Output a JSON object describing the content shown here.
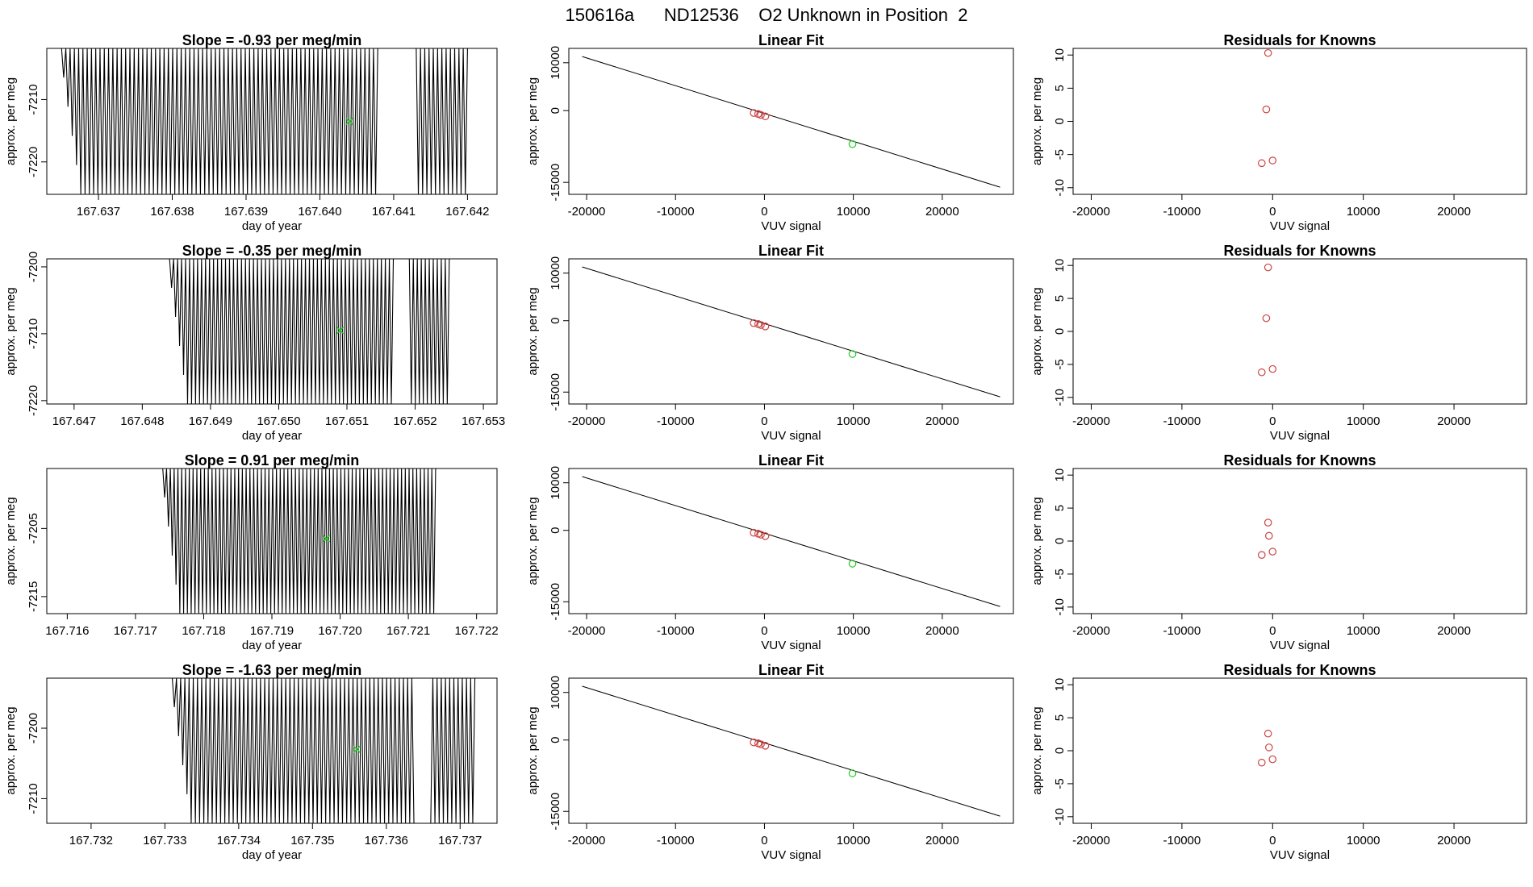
{
  "figure_title": "150616a      ND12536    O2 Unknown in Position  2",
  "chart_data": [
    {
      "row": 1,
      "panels": [
        {
          "type": "line",
          "title": "Slope =  -0.93  per meg/min",
          "xlabel": "day of year",
          "ylabel": "approx. per meg",
          "xlim": [
            167.6363,
            167.6424
          ],
          "ylim": [
            -7225.2,
            -7201.8
          ],
          "xticks": [
            167.637,
            167.638,
            167.639,
            167.64,
            167.641,
            167.642
          ],
          "xtick_labels": [
            "167.637",
            "167.638",
            "167.639",
            "167.640",
            "167.641",
            "167.642"
          ],
          "yticks": [
            -7210,
            -7220
          ],
          "ytick_labels": [
            "-7210",
            "-7220"
          ],
          "trace": {
            "x_start": 167.6365,
            "x_end": 167.642,
            "cycles": 95,
            "y_low": -7225.2,
            "y_high": -7201.8,
            "gaps": [
              [
                167.6408,
                167.6413
              ]
            ]
          },
          "marker": {
            "x": 167.6404,
            "y": -7213.5,
            "color": "#22cc22"
          }
        },
        {
          "type": "scatter",
          "title": "Linear Fit",
          "xlabel": "VUV signal",
          "ylabel": "approx. per meg",
          "xlim": [
            -22000,
            28000
          ],
          "ylim": [
            -17500,
            13000
          ],
          "xticks": [
            -20000,
            -10000,
            0,
            10000,
            20000
          ],
          "xtick_labels": [
            "-20000",
            "-10000",
            "0",
            "10000",
            "20000"
          ],
          "yticks": [
            10000,
            0,
            -15000
          ],
          "ytick_labels": [
            "10000",
            "0",
            "-15000"
          ],
          "fit_line": {
            "x": [
              -20500,
              26500
            ],
            "y": [
              11300,
              -16000
            ]
          },
          "points_known": {
            "x": [
              -1200,
              -700,
              -400,
              100
            ],
            "y": [
              -500,
              -700,
              -900,
              -1200
            ],
            "color": "#cc4444"
          },
          "points_unknown": {
            "x": [
              9900
            ],
            "y": [
              -7000
            ],
            "color": "#22cc22"
          }
        },
        {
          "type": "scatter",
          "title": "Residuals for Knowns",
          "xlabel": "VUV signal",
          "ylabel": "approx. per meg",
          "xlim": [
            -22000,
            28000
          ],
          "ylim": [
            -11,
            11
          ],
          "xticks": [
            -20000,
            -10000,
            0,
            10000,
            20000
          ],
          "xtick_labels": [
            "-20000",
            "-10000",
            "0",
            "10000",
            "20000"
          ],
          "yticks": [
            10,
            5,
            0,
            -5,
            -10
          ],
          "ytick_labels": [
            "10",
            "5",
            "0",
            "-5",
            "-10"
          ],
          "points": {
            "x": [
              -500,
              -700,
              -1200,
              0
            ],
            "y": [
              10.3,
              1.8,
              -6.3,
              -5.9
            ],
            "color": "#cc4444"
          }
        }
      ]
    },
    {
      "row": 2,
      "panels": [
        {
          "type": "line",
          "title": "Slope =  -0.35  per meg/min",
          "xlabel": "day of year",
          "ylabel": "approx. per meg",
          "xlim": [
            167.6466,
            167.6532
          ],
          "ylim": [
            -7220.5,
            -7198.8
          ],
          "xticks": [
            167.647,
            167.648,
            167.649,
            167.65,
            167.651,
            167.652,
            167.653
          ],
          "xtick_labels": [
            "167.647",
            "167.648",
            "167.649",
            "167.650",
            "167.651",
            "167.652",
            "167.653"
          ],
          "yticks": [
            -7200,
            -7210,
            -7220
          ],
          "ytick_labels": [
            "-7200",
            "-7210",
            "-7220"
          ],
          "trace": {
            "x_start": 167.6484,
            "x_end": 167.6525,
            "cycles": 70,
            "y_low": -7220.5,
            "y_high": -7198.8,
            "gaps": [
              [
                167.6517,
                167.6519
              ]
            ]
          },
          "marker": {
            "x": 167.6509,
            "y": -7209.5,
            "color": "#22cc22"
          }
        },
        {
          "type": "scatter",
          "title": "Linear Fit",
          "xlabel": "VUV signal",
          "ylabel": "approx. per meg",
          "xlim": [
            -22000,
            28000
          ],
          "ylim": [
            -17500,
            13000
          ],
          "xticks": [
            -20000,
            -10000,
            0,
            10000,
            20000
          ],
          "xtick_labels": [
            "-20000",
            "-10000",
            "0",
            "10000",
            "20000"
          ],
          "yticks": [
            10000,
            0,
            -15000
          ],
          "ytick_labels": [
            "10000",
            "0",
            "-15000"
          ],
          "fit_line": {
            "x": [
              -20500,
              26500
            ],
            "y": [
              11300,
              -16000
            ]
          },
          "points_known": {
            "x": [
              -1200,
              -700,
              -400,
              100
            ],
            "y": [
              -500,
              -700,
              -900,
              -1200
            ],
            "color": "#cc4444"
          },
          "points_unknown": {
            "x": [
              9900
            ],
            "y": [
              -7000
            ],
            "color": "#22cc22"
          }
        },
        {
          "type": "scatter",
          "title": "Residuals for Knowns",
          "xlabel": "VUV signal",
          "ylabel": "approx. per meg",
          "xlim": [
            -22000,
            28000
          ],
          "ylim": [
            -11,
            11
          ],
          "xticks": [
            -20000,
            -10000,
            0,
            10000,
            20000
          ],
          "xtick_labels": [
            "-20000",
            "-10000",
            "0",
            "10000",
            "20000"
          ],
          "yticks": [
            10,
            5,
            0,
            -5,
            -10
          ],
          "ytick_labels": [
            "10",
            "5",
            "0",
            "-5",
            "-10"
          ],
          "points": {
            "x": [
              -500,
              -700,
              -1200,
              0
            ],
            "y": [
              9.7,
              2.0,
              -6.2,
              -5.7
            ],
            "color": "#cc4444"
          }
        }
      ]
    },
    {
      "row": 3,
      "panels": [
        {
          "type": "line",
          "title": "Slope =  0.91  per meg/min",
          "xlabel": "day of year",
          "ylabel": "approx. per meg",
          "xlim": [
            167.7157,
            167.7223
          ],
          "ylim": [
            -7217.5,
            -7196.2
          ],
          "xticks": [
            167.716,
            167.717,
            167.718,
            167.719,
            167.72,
            167.721,
            167.722
          ],
          "xtick_labels": [
            "167.716",
            "167.717",
            "167.718",
            "167.719",
            "167.720",
            "167.721",
            "167.722"
          ],
          "yticks": [
            -7205,
            -7215
          ],
          "ytick_labels": [
            "-7205",
            "-7215"
          ],
          "trace": {
            "x_start": 167.7174,
            "x_end": 167.7214,
            "cycles": 72,
            "y_low": -7217.5,
            "y_high": -7196.2,
            "gaps": []
          },
          "marker": {
            "x": 167.7198,
            "y": -7206.5,
            "color": "#22cc22"
          }
        },
        {
          "type": "scatter",
          "title": "Linear Fit",
          "xlabel": "VUV signal",
          "ylabel": "approx. per meg",
          "xlim": [
            -22000,
            28000
          ],
          "ylim": [
            -17500,
            13000
          ],
          "xticks": [
            -20000,
            -10000,
            0,
            10000,
            20000
          ],
          "xtick_labels": [
            "-20000",
            "-10000",
            "0",
            "10000",
            "20000"
          ],
          "yticks": [
            10000,
            0,
            -15000
          ],
          "ytick_labels": [
            "10000",
            "0",
            "-15000"
          ],
          "fit_line": {
            "x": [
              -20500,
              26500
            ],
            "y": [
              11300,
              -16000
            ]
          },
          "points_known": {
            "x": [
              -1200,
              -700,
              -400,
              100
            ],
            "y": [
              -500,
              -700,
              -900,
              -1200
            ],
            "color": "#cc4444"
          },
          "points_unknown": {
            "x": [
              9900
            ],
            "y": [
              -7000
            ],
            "color": "#22cc22"
          }
        },
        {
          "type": "scatter",
          "title": "Residuals for Knowns",
          "xlabel": "VUV signal",
          "ylabel": "approx. per meg",
          "xlim": [
            -22000,
            28000
          ],
          "ylim": [
            -11,
            11
          ],
          "xticks": [
            -20000,
            -10000,
            0,
            10000,
            20000
          ],
          "xtick_labels": [
            "-20000",
            "-10000",
            "0",
            "10000",
            "20000"
          ],
          "yticks": [
            10,
            5,
            0,
            -5,
            -10
          ],
          "ytick_labels": [
            "10",
            "5",
            "0",
            "-5",
            "-10"
          ],
          "points": {
            "x": [
              -500,
              -400,
              -1200,
              0
            ],
            "y": [
              2.8,
              0.8,
              -2.1,
              -1.6
            ],
            "color": "#cc4444"
          }
        }
      ]
    },
    {
      "row": 4,
      "panels": [
        {
          "type": "line",
          "title": "Slope =  -1.63  per meg/min",
          "xlabel": "day of year",
          "ylabel": "approx. per meg",
          "xlim": [
            167.7314,
            167.7375
          ],
          "ylim": [
            -7213.5,
            -7192.9
          ],
          "xticks": [
            167.732,
            167.733,
            167.734,
            167.735,
            167.736,
            167.737
          ],
          "xtick_labels": [
            "167.732",
            "167.733",
            "167.734",
            "167.735",
            "167.736",
            "167.737"
          ],
          "yticks": [
            -7200,
            -7210
          ],
          "ytick_labels": [
            "-7200",
            "-7210"
          ],
          "trace": {
            "x_start": 167.7331,
            "x_end": 167.7372,
            "cycles": 72,
            "y_low": -7213.5,
            "y_high": -7192.9,
            "gaps": [
              [
                167.7364,
                167.7366
              ]
            ]
          },
          "marker": {
            "x": 167.7356,
            "y": -7203.0,
            "color": "#22cc22"
          }
        },
        {
          "type": "scatter",
          "title": "Linear Fit",
          "xlabel": "VUV signal",
          "ylabel": "approx. per meg",
          "xlim": [
            -22000,
            28000
          ],
          "ylim": [
            -17500,
            13000
          ],
          "xticks": [
            -20000,
            -10000,
            0,
            10000,
            20000
          ],
          "xtick_labels": [
            "-20000",
            "-10000",
            "0",
            "10000",
            "20000"
          ],
          "yticks": [
            10000,
            0,
            -15000
          ],
          "ytick_labels": [
            "10000",
            "0",
            "-15000"
          ],
          "fit_line": {
            "x": [
              -20500,
              26500
            ],
            "y": [
              11300,
              -16000
            ]
          },
          "points_known": {
            "x": [
              -1200,
              -700,
              -400,
              100
            ],
            "y": [
              -500,
              -700,
              -900,
              -1200
            ],
            "color": "#cc4444"
          },
          "points_unknown": {
            "x": [
              9900
            ],
            "y": [
              -7000
            ],
            "color": "#22cc22"
          }
        },
        {
          "type": "scatter",
          "title": "Residuals for Knowns",
          "xlabel": "VUV signal",
          "ylabel": "approx. per meg",
          "xlim": [
            -22000,
            28000
          ],
          "ylim": [
            -11,
            11
          ],
          "xticks": [
            -20000,
            -10000,
            0,
            10000,
            20000
          ],
          "xtick_labels": [
            "-20000",
            "-10000",
            "0",
            "10000",
            "20000"
          ],
          "yticks": [
            10,
            5,
            0,
            -5,
            -10
          ],
          "ytick_labels": [
            "10",
            "5",
            "0",
            "-5",
            "-10"
          ],
          "points": {
            "x": [
              -500,
              -400,
              -1200,
              0
            ],
            "y": [
              2.6,
              0.5,
              -1.8,
              -1.3
            ],
            "color": "#cc4444"
          }
        }
      ]
    }
  ]
}
